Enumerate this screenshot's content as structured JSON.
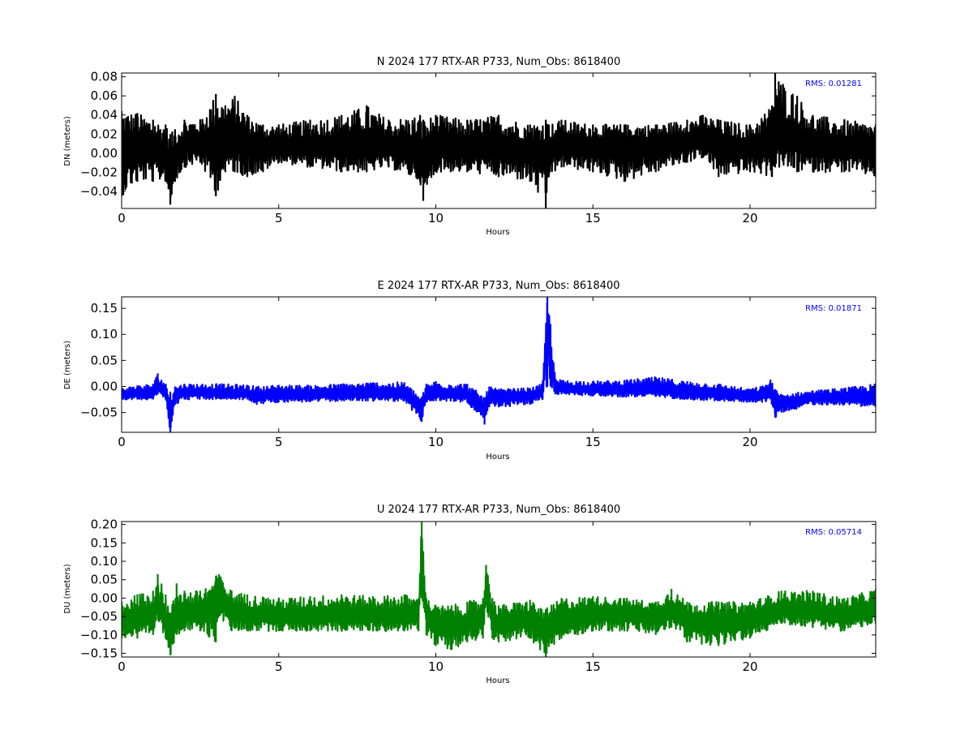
{
  "chart_data": [
    {
      "type": "line",
      "title": "N 2024 177 RTX-AR  P733, Num_Obs: 8618400",
      "xlabel": "Hours",
      "ylabel": "DN (meters)",
      "xlim": [
        0,
        24
      ],
      "ylim": [
        -0.058,
        0.084
      ],
      "xticks": [
        0,
        5,
        10,
        15,
        20
      ],
      "xtick_labels": [
        "0",
        "5",
        "10",
        "15",
        "20"
      ],
      "yticks": [
        -0.04,
        -0.02,
        0.0,
        0.02,
        0.04,
        0.06,
        0.08
      ],
      "ytick_labels": [
        "−0.04",
        "−0.02",
        "0.00",
        "0.02",
        "0.04",
        "0.06",
        "0.08"
      ],
      "annotation": "RMS:  0.01281",
      "color": "#000000",
      "grid": false,
      "series": [
        {
          "x": [
            0,
            0.5,
            1.0,
            1.4,
            1.55,
            1.7,
            2.0,
            2.5,
            3.0,
            3.3,
            3.6,
            4.0,
            4.5,
            5.0,
            6.0,
            7.0,
            7.8,
            8.5,
            9.5,
            9.6,
            10.0,
            11.0,
            12.0,
            13.0,
            13.5,
            13.6,
            14.0,
            15.0,
            16.0,
            17.0,
            18.0,
            18.5,
            19.0,
            20.0,
            20.7,
            20.8,
            21.5,
            22.0,
            23.0,
            24.0
          ],
          "y_mean": [
            0.005,
            0.006,
            0.004,
            0.0,
            -0.02,
            -0.005,
            0.008,
            0.01,
            0.008,
            0.018,
            0.015,
            0.01,
            0.006,
            0.005,
            0.006,
            0.006,
            0.005,
            0.005,
            0.002,
            -0.01,
            0.006,
            0.006,
            0.005,
            0.003,
            0.0,
            0.004,
            0.007,
            0.007,
            0.007,
            0.009,
            0.012,
            0.015,
            0.008,
            0.004,
            0.008,
            0.015,
            0.014,
            0.008,
            0.005,
            0.004
          ],
          "y_min": [
            -0.045,
            -0.03,
            -0.03,
            -0.03,
            -0.054,
            -0.03,
            -0.015,
            -0.01,
            -0.045,
            -0.02,
            -0.02,
            -0.025,
            -0.02,
            -0.01,
            -0.015,
            -0.02,
            -0.02,
            -0.015,
            -0.03,
            -0.05,
            -0.02,
            -0.02,
            -0.025,
            -0.03,
            -0.058,
            -0.025,
            -0.015,
            -0.02,
            -0.03,
            -0.02,
            -0.01,
            -0.005,
            -0.025,
            -0.02,
            -0.025,
            -0.015,
            -0.02,
            -0.02,
            -0.02,
            -0.025
          ],
          "y_max": [
            0.044,
            0.042,
            0.035,
            0.03,
            0.02,
            0.025,
            0.035,
            0.035,
            0.062,
            0.05,
            0.06,
            0.04,
            0.03,
            0.03,
            0.035,
            0.04,
            0.05,
            0.035,
            0.04,
            0.035,
            0.04,
            0.035,
            0.04,
            0.03,
            0.035,
            0.03,
            0.035,
            0.03,
            0.03,
            0.03,
            0.035,
            0.04,
            0.035,
            0.03,
            0.05,
            0.084,
            0.06,
            0.04,
            0.035,
            0.03
          ]
        }
      ]
    },
    {
      "type": "line",
      "title": "E 2024 177 RTX-AR  P733, Num_Obs: 8618400",
      "xlabel": "Hours",
      "ylabel": "DE (meters)",
      "xlim": [
        0,
        24
      ],
      "ylim": [
        -0.088,
        0.172
      ],
      "xticks": [
        0,
        5,
        10,
        15,
        20
      ],
      "xtick_labels": [
        "0",
        "5",
        "10",
        "15",
        "20"
      ],
      "yticks": [
        -0.05,
        0.0,
        0.05,
        0.1,
        0.15
      ],
      "ytick_labels": [
        "−0.05",
        "0.00",
        "0.05",
        "0.10",
        "0.15"
      ],
      "annotation": "RMS:  0.01871",
      "color": "#0000ff",
      "grid": false,
      "series": [
        {
          "x": [
            0,
            0.5,
            1.0,
            1.15,
            1.4,
            1.55,
            1.7,
            2.0,
            3.0,
            4.0,
            4.3,
            5.0,
            6.0,
            7.0,
            8.0,
            9.0,
            9.55,
            9.7,
            10.0,
            11.0,
            11.55,
            11.7,
            12.0,
            13.0,
            13.4,
            13.55,
            13.65,
            13.8,
            14.0,
            15.0,
            16.0,
            17.0,
            18.0,
            19.0,
            20.0,
            20.5,
            20.65,
            20.8,
            21.0,
            22.0,
            23.0,
            24.0
          ],
          "y_mean": [
            -0.015,
            -0.015,
            -0.012,
            -0.002,
            -0.01,
            -0.06,
            -0.015,
            -0.01,
            -0.013,
            -0.015,
            -0.02,
            -0.015,
            -0.016,
            -0.014,
            -0.013,
            -0.015,
            -0.045,
            -0.014,
            -0.014,
            -0.016,
            -0.045,
            -0.02,
            -0.02,
            -0.017,
            -0.01,
            0.14,
            0.05,
            0.0,
            -0.005,
            -0.006,
            -0.006,
            -0.005,
            -0.01,
            -0.013,
            -0.02,
            -0.015,
            -0.01,
            -0.03,
            -0.035,
            -0.02,
            -0.02,
            -0.02
          ],
          "y_min": [
            -0.025,
            -0.025,
            -0.025,
            -0.015,
            -0.025,
            -0.088,
            -0.035,
            -0.025,
            -0.025,
            -0.025,
            -0.035,
            -0.03,
            -0.03,
            -0.028,
            -0.028,
            -0.028,
            -0.068,
            -0.03,
            -0.028,
            -0.03,
            -0.073,
            -0.04,
            -0.04,
            -0.035,
            -0.025,
            0.0,
            0.0,
            -0.015,
            -0.015,
            -0.018,
            -0.02,
            -0.02,
            -0.025,
            -0.028,
            -0.03,
            -0.03,
            -0.025,
            -0.06,
            -0.05,
            -0.035,
            -0.035,
            -0.04
          ],
          "y_max": [
            -0.003,
            0.002,
            0.005,
            0.025,
            0.005,
            -0.01,
            0.0,
            0.005,
            0.005,
            0.003,
            0.0,
            0.003,
            0.002,
            0.005,
            0.008,
            0.008,
            -0.02,
            0.005,
            0.01,
            0.005,
            -0.02,
            0.0,
            -0.005,
            -0.003,
            0.005,
            0.172,
            0.12,
            0.015,
            0.012,
            0.01,
            0.012,
            0.018,
            0.01,
            0.005,
            -0.005,
            0.003,
            0.013,
            -0.005,
            -0.015,
            -0.008,
            -0.003,
            0.005
          ]
        }
      ]
    },
    {
      "type": "line",
      "title": "U 2024 177 RTX-AR  P733, Num_Obs: 8618400",
      "xlabel": "Hours",
      "ylabel": "DU (meters)",
      "xlim": [
        0,
        24
      ],
      "ylim": [
        -0.16,
        0.208
      ],
      "xticks": [
        0,
        5,
        10,
        15,
        20
      ],
      "xtick_labels": [
        "0",
        "5",
        "10",
        "15",
        "20"
      ],
      "yticks": [
        -0.15,
        -0.1,
        -0.05,
        0.0,
        0.05,
        0.1,
        0.15,
        0.2
      ],
      "ytick_labels": [
        "−0.15",
        "−0.10",
        "−0.05",
        "0.00",
        "0.05",
        "0.10",
        "0.15",
        "0.20"
      ],
      "annotation": "RMS:  0.05714",
      "color": "#008000",
      "grid": false,
      "series": [
        {
          "x": [
            0,
            0.5,
            1.0,
            1.15,
            1.4,
            1.55,
            1.75,
            2.0,
            2.5,
            3.0,
            3.1,
            3.5,
            4.0,
            5.0,
            6.0,
            7.0,
            8.0,
            9.0,
            9.45,
            9.55,
            9.7,
            10.0,
            10.5,
            11.0,
            11.5,
            11.6,
            11.8,
            12.0,
            13.0,
            13.5,
            14.0,
            15.0,
            16.0,
            17.0,
            17.5,
            18.0,
            19.0,
            20.0,
            21.0,
            22.0,
            23.0,
            24.0
          ],
          "y_mean": [
            -0.06,
            -0.06,
            -0.05,
            -0.02,
            -0.06,
            -0.1,
            -0.05,
            -0.04,
            -0.05,
            -0.03,
            0.0,
            -0.04,
            -0.045,
            -0.05,
            -0.05,
            -0.045,
            -0.05,
            -0.05,
            -0.05,
            0.15,
            -0.05,
            -0.07,
            -0.08,
            -0.07,
            -0.06,
            0.05,
            -0.06,
            -0.07,
            -0.06,
            -0.09,
            -0.06,
            -0.04,
            -0.04,
            -0.05,
            -0.03,
            -0.06,
            -0.07,
            -0.06,
            -0.03,
            -0.04,
            -0.05,
            -0.03
          ],
          "y_min": [
            -0.11,
            -0.11,
            -0.1,
            -0.06,
            -0.11,
            -0.155,
            -0.1,
            -0.09,
            -0.09,
            -0.12,
            -0.05,
            -0.09,
            -0.09,
            -0.09,
            -0.09,
            -0.09,
            -0.09,
            -0.09,
            -0.09,
            0.0,
            -0.1,
            -0.13,
            -0.14,
            -0.12,
            -0.11,
            -0.02,
            -0.11,
            -0.12,
            -0.11,
            -0.16,
            -0.11,
            -0.09,
            -0.09,
            -0.1,
            -0.08,
            -0.12,
            -0.13,
            -0.11,
            -0.07,
            -0.08,
            -0.09,
            -0.07
          ],
          "y_max": [
            -0.01,
            0.01,
            0.02,
            0.065,
            0.01,
            -0.04,
            0.04,
            0.02,
            0.02,
            0.06,
            0.065,
            0.02,
            0.01,
            0.0,
            0.005,
            0.01,
            0.005,
            0.01,
            0.0,
            0.208,
            0.0,
            -0.02,
            -0.02,
            -0.01,
            0.0,
            0.09,
            0.0,
            -0.02,
            -0.005,
            -0.03,
            0.0,
            0.005,
            0.0,
            -0.01,
            0.025,
            -0.01,
            -0.01,
            -0.01,
            0.02,
            0.02,
            0.0,
            0.025
          ]
        }
      ]
    }
  ],
  "rms_color": "#0000ff",
  "axes_color": "#000000"
}
